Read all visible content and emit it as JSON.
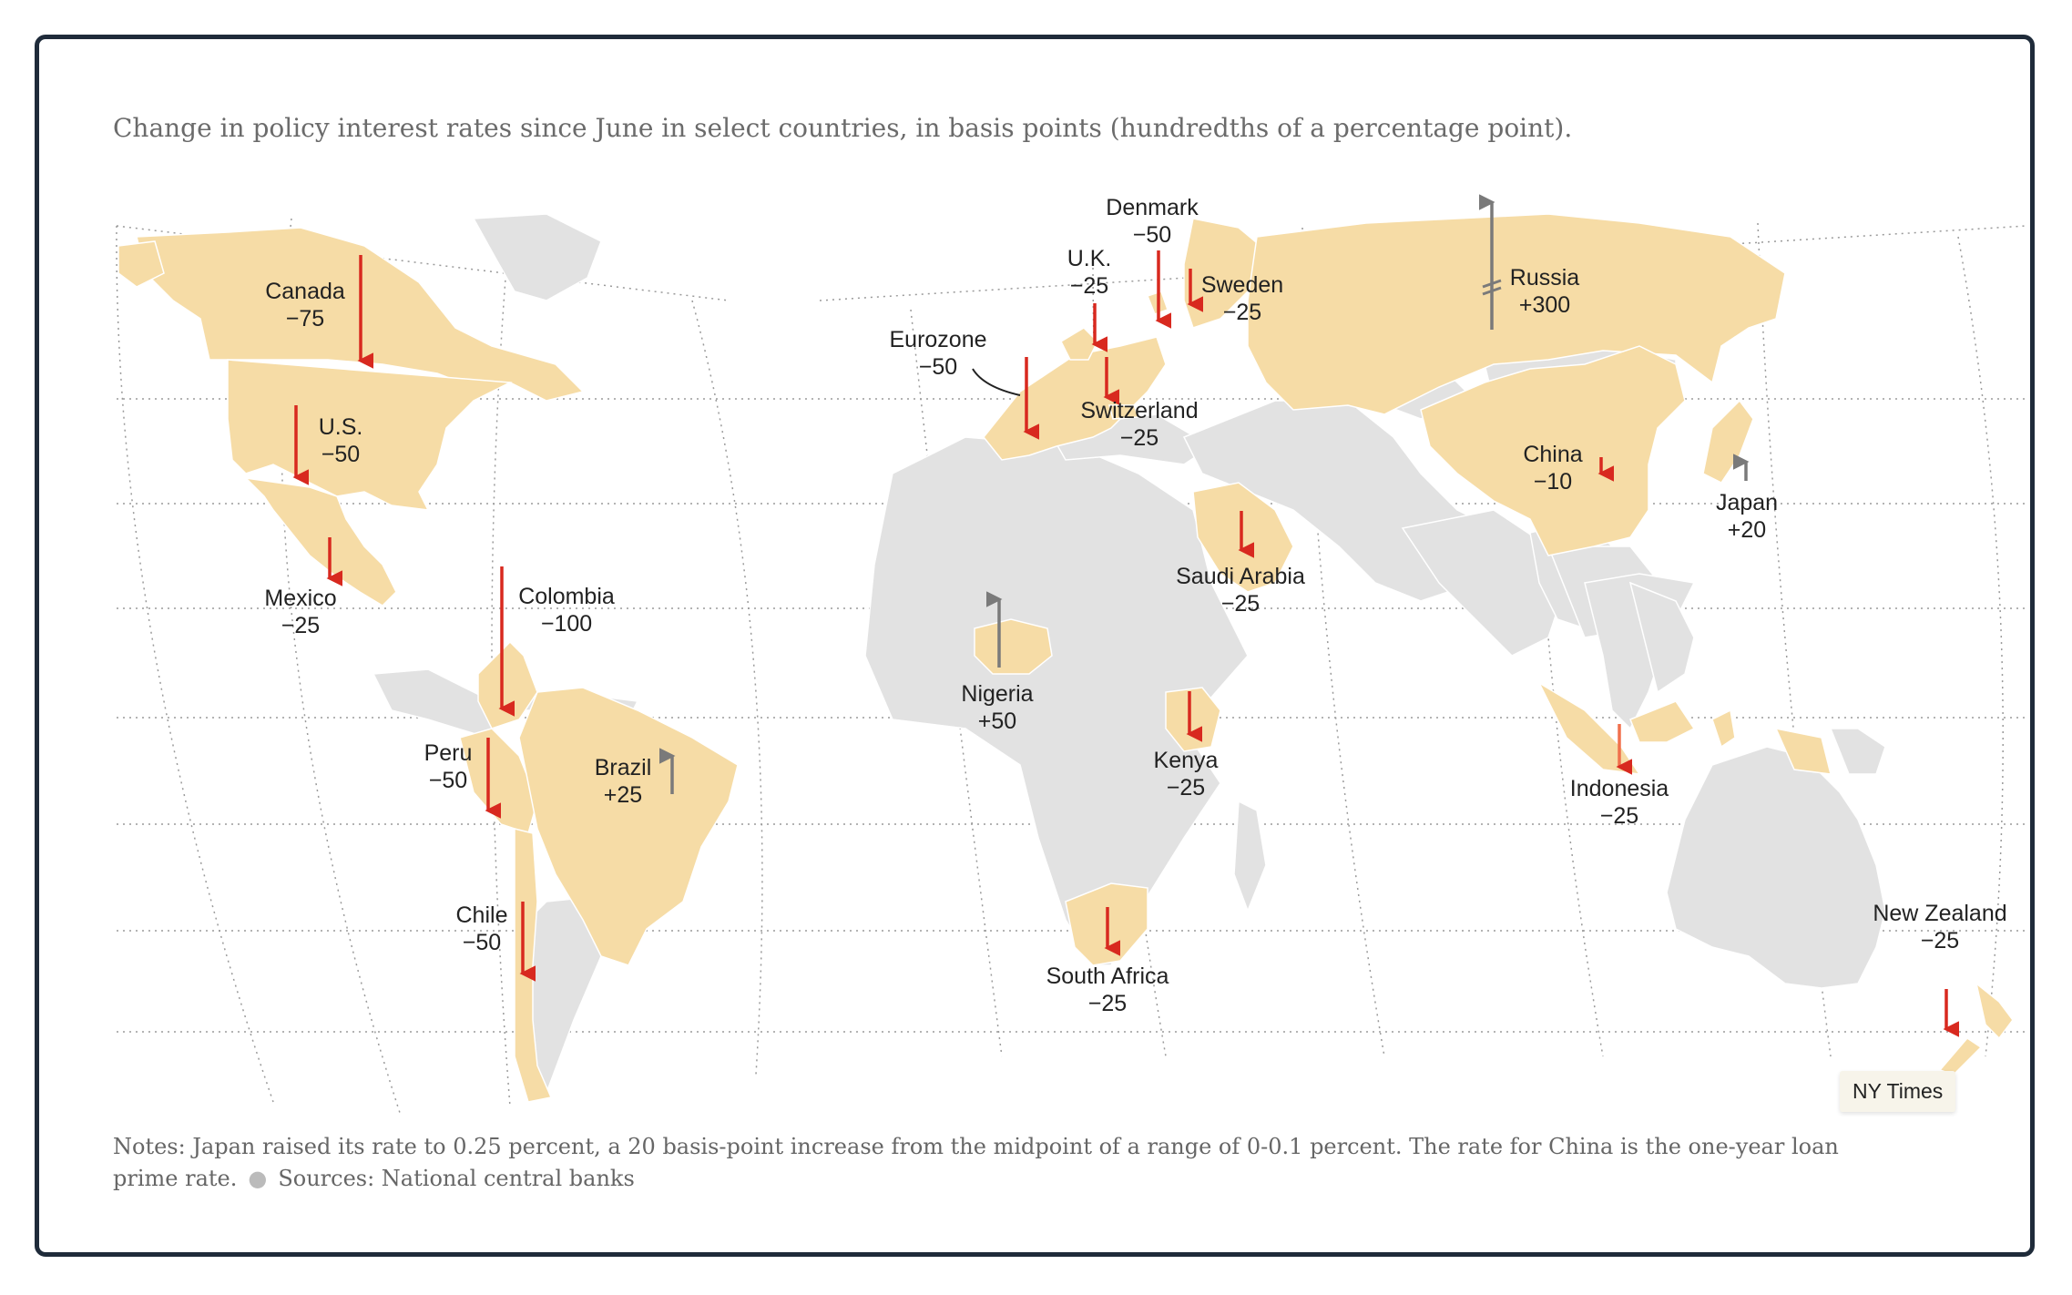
{
  "subtitle": "Change in policy interest rates since June in select countries, in basis points (hundredths of a percentage point).",
  "colors": {
    "highlight": "#f6dca6",
    "land": "#e2e2e2",
    "cut": "#d8291f",
    "raise": "#7a7a7a",
    "frame": "#1f2b3a"
  },
  "countries": [
    {
      "name": "Canada",
      "value": "−75",
      "change": -75
    },
    {
      "name": "U.S.",
      "value": "−50",
      "change": -50
    },
    {
      "name": "Mexico",
      "value": "−25",
      "change": -25
    },
    {
      "name": "Colombia",
      "value": "−100",
      "change": -100
    },
    {
      "name": "Peru",
      "value": "−50",
      "change": -50
    },
    {
      "name": "Brazil",
      "value": "+25",
      "change": 25
    },
    {
      "name": "Chile",
      "value": "−50",
      "change": -50
    },
    {
      "name": "Eurozone",
      "value": "−50",
      "change": -50
    },
    {
      "name": "U.K.",
      "value": "−25",
      "change": -25
    },
    {
      "name": "Denmark",
      "value": "−50",
      "change": -50
    },
    {
      "name": "Sweden",
      "value": "−25",
      "change": -25
    },
    {
      "name": "Switzerland",
      "value": "−25",
      "change": -25
    },
    {
      "name": "Russia",
      "value": "+300",
      "change": 300
    },
    {
      "name": "China",
      "value": "−10",
      "change": -10
    },
    {
      "name": "Japan",
      "value": "+20",
      "change": 20
    },
    {
      "name": "Saudi Arabia",
      "value": "−25",
      "change": -25
    },
    {
      "name": "Nigeria",
      "value": "+50",
      "change": 50
    },
    {
      "name": "Kenya",
      "value": "−25",
      "change": -25
    },
    {
      "name": "Indonesia",
      "value": "−25",
      "change": -25
    },
    {
      "name": "South Africa",
      "value": "−25",
      "change": -25
    },
    {
      "name": "New Zealand",
      "value": "−25",
      "change": -25
    }
  ],
  "notes": {
    "text": "Notes: Japan raised its rate to 0.25 percent, a 20 basis-point increase from the midpoint of a range of 0-0.1 percent. The rate for China is the one-year loan prime rate.",
    "sources": "Sources: National central banks"
  },
  "credit": "NY Times"
}
